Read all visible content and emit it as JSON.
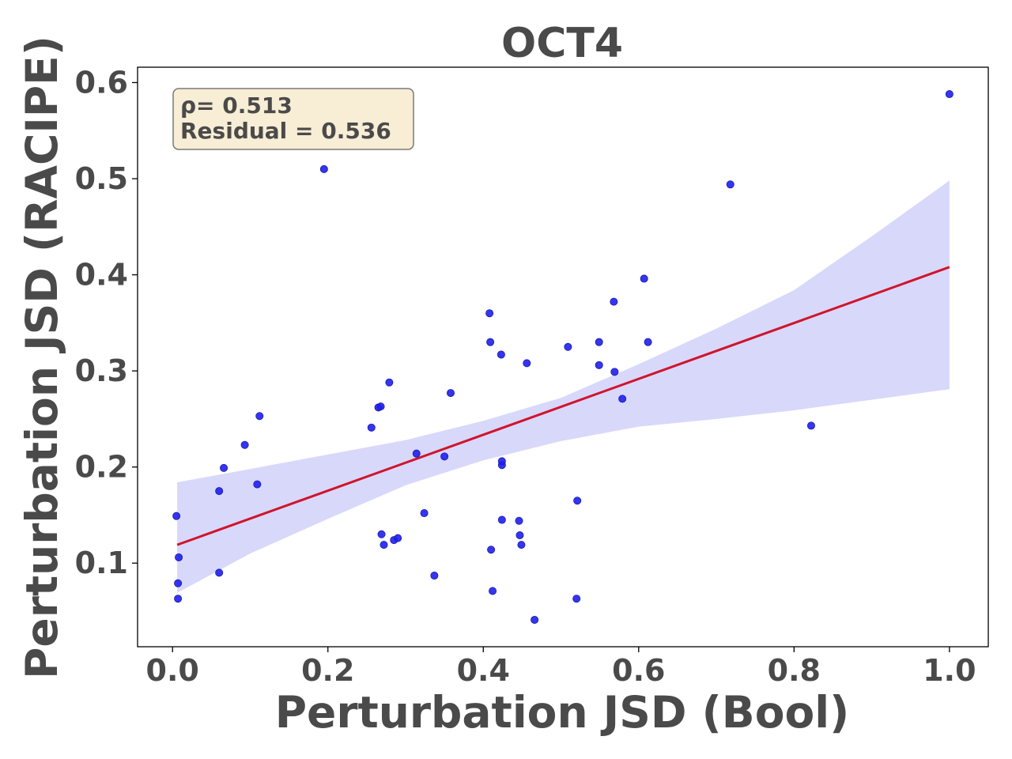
{
  "chart_data": {
    "type": "scatter",
    "title": "OCT4",
    "xlabel": "Perturbation JSD (Bool)",
    "ylabel": "Perturbation JSD (RACIPE)",
    "xlim": [
      -0.045,
      1.05
    ],
    "ylim": [
      0.013,
      0.616
    ],
    "xticks": [
      "0.0",
      "0.2",
      "0.4",
      "0.6",
      "0.8",
      "1.0"
    ],
    "yticks": [
      "0.1",
      "0.2",
      "0.3",
      "0.4",
      "0.5",
      "0.6"
    ],
    "grid": false,
    "annotation": {
      "line1": "ρ= 0.513",
      "line2": "Residual = 0.536"
    },
    "colors": {
      "points": "#1f1fee",
      "regression": "#d0142c",
      "band": "#d8d8fb",
      "annotation_fill": "#f8edd5",
      "text": "#4a4a4a"
    },
    "regression_line": {
      "x": [
        0.006,
        1.0
      ],
      "y": [
        0.119,
        0.408
      ]
    },
    "confidence_band": {
      "x": [
        0.006,
        0.1,
        0.2,
        0.3,
        0.4,
        0.5,
        0.6,
        0.7,
        0.8,
        0.9,
        1.0
      ],
      "upper": [
        0.184,
        0.198,
        0.213,
        0.228,
        0.248,
        0.272,
        0.307,
        0.344,
        0.384,
        0.44,
        0.498
      ],
      "lower": [
        0.069,
        0.11,
        0.146,
        0.181,
        0.207,
        0.227,
        0.242,
        0.25,
        0.259,
        0.27,
        0.281
      ]
    },
    "points": [
      {
        "x": 0.005,
        "y": 0.149
      },
      {
        "x": 0.007,
        "y": 0.063
      },
      {
        "x": 0.007,
        "y": 0.079
      },
      {
        "x": 0.008,
        "y": 0.106
      },
      {
        "x": 0.06,
        "y": 0.09
      },
      {
        "x": 0.06,
        "y": 0.175
      },
      {
        "x": 0.066,
        "y": 0.199
      },
      {
        "x": 0.093,
        "y": 0.223
      },
      {
        "x": 0.109,
        "y": 0.182
      },
      {
        "x": 0.112,
        "y": 0.253
      },
      {
        "x": 0.195,
        "y": 0.51
      },
      {
        "x": 0.256,
        "y": 0.241
      },
      {
        "x": 0.265,
        "y": 0.262
      },
      {
        "x": 0.268,
        "y": 0.263
      },
      {
        "x": 0.269,
        "y": 0.13
      },
      {
        "x": 0.272,
        "y": 0.119
      },
      {
        "x": 0.279,
        "y": 0.288
      },
      {
        "x": 0.285,
        "y": 0.124
      },
      {
        "x": 0.29,
        "y": 0.126
      },
      {
        "x": 0.314,
        "y": 0.214
      },
      {
        "x": 0.324,
        "y": 0.152
      },
      {
        "x": 0.337,
        "y": 0.087
      },
      {
        "x": 0.35,
        "y": 0.211
      },
      {
        "x": 0.358,
        "y": 0.277
      },
      {
        "x": 0.408,
        "y": 0.36
      },
      {
        "x": 0.409,
        "y": 0.33
      },
      {
        "x": 0.41,
        "y": 0.114
      },
      {
        "x": 0.412,
        "y": 0.071
      },
      {
        "x": 0.423,
        "y": 0.317
      },
      {
        "x": 0.424,
        "y": 0.145
      },
      {
        "x": 0.424,
        "y": 0.202
      },
      {
        "x": 0.424,
        "y": 0.206
      },
      {
        "x": 0.446,
        "y": 0.144
      },
      {
        "x": 0.447,
        "y": 0.129
      },
      {
        "x": 0.449,
        "y": 0.119
      },
      {
        "x": 0.456,
        "y": 0.308
      },
      {
        "x": 0.466,
        "y": 0.041
      },
      {
        "x": 0.509,
        "y": 0.325
      },
      {
        "x": 0.52,
        "y": 0.063
      },
      {
        "x": 0.521,
        "y": 0.165
      },
      {
        "x": 0.549,
        "y": 0.33
      },
      {
        "x": 0.549,
        "y": 0.306
      },
      {
        "x": 0.568,
        "y": 0.372
      },
      {
        "x": 0.569,
        "y": 0.299
      },
      {
        "x": 0.579,
        "y": 0.271
      },
      {
        "x": 0.607,
        "y": 0.396
      },
      {
        "x": 0.612,
        "y": 0.33
      },
      {
        "x": 0.718,
        "y": 0.494
      },
      {
        "x": 0.822,
        "y": 0.243
      },
      {
        "x": 1.0,
        "y": 0.588
      }
    ]
  }
}
